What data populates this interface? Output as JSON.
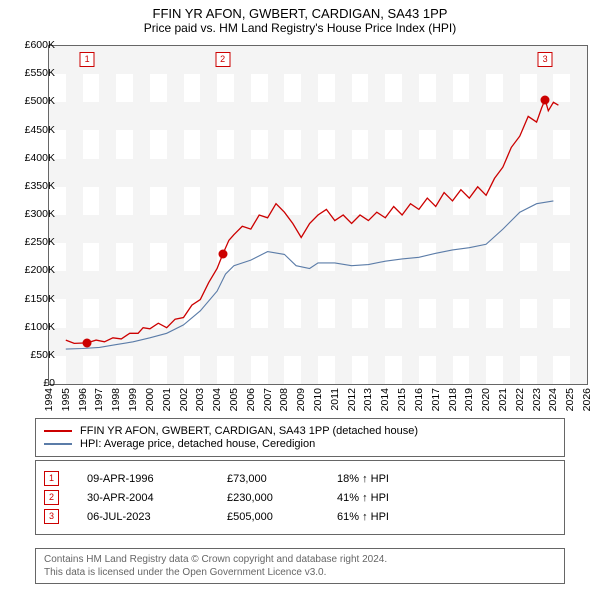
{
  "title": "FFIN YR AFON, GWBERT, CARDIGAN, SA43 1PP",
  "subtitle": "Price paid vs. HM Land Registry's House Price Index (HPI)",
  "chart": {
    "type": "line",
    "ylim": [
      0,
      600000
    ],
    "ytick_step": 50000,
    "ylabels": [
      "£0",
      "£50K",
      "£100K",
      "£150K",
      "£200K",
      "£250K",
      "£300K",
      "£350K",
      "£400K",
      "£450K",
      "£500K",
      "£550K",
      "£600K"
    ],
    "xlim": [
      1994,
      2026
    ],
    "xtick_step": 1,
    "xlabels": [
      "1994",
      "1995",
      "1996",
      "1997",
      "1998",
      "1999",
      "2000",
      "2001",
      "2002",
      "2003",
      "2004",
      "2005",
      "2006",
      "2007",
      "2008",
      "2009",
      "2010",
      "2011",
      "2012",
      "2013",
      "2014",
      "2015",
      "2016",
      "2017",
      "2018",
      "2019",
      "2020",
      "2021",
      "2022",
      "2023",
      "2024",
      "2025",
      "2026"
    ],
    "background_color": "#ffffff",
    "band_color": "#f4f4f4",
    "series": [
      {
        "name": "price_paid",
        "label": "FFIN YR AFON, GWBERT, CARDIGAN, SA43 1PP (detached house)",
        "color": "#cc0000",
        "line_width": 1.3,
        "data": [
          [
            1995.0,
            78000
          ],
          [
            1995.5,
            72000
          ],
          [
            1996.27,
            73000
          ],
          [
            1996.8,
            78000
          ],
          [
            1997.3,
            75000
          ],
          [
            1997.8,
            82000
          ],
          [
            1998.3,
            80000
          ],
          [
            1998.8,
            90000
          ],
          [
            1999.3,
            90000
          ],
          [
            1999.6,
            100000
          ],
          [
            2000.0,
            98000
          ],
          [
            2000.5,
            108000
          ],
          [
            2001.0,
            100000
          ],
          [
            2001.5,
            115000
          ],
          [
            2002.0,
            118000
          ],
          [
            2002.5,
            140000
          ],
          [
            2003.0,
            150000
          ],
          [
            2003.5,
            180000
          ],
          [
            2004.0,
            205000
          ],
          [
            2004.33,
            230000
          ],
          [
            2004.7,
            255000
          ],
          [
            2005.0,
            265000
          ],
          [
            2005.5,
            280000
          ],
          [
            2006.0,
            275000
          ],
          [
            2006.5,
            300000
          ],
          [
            2007.0,
            295000
          ],
          [
            2007.5,
            320000
          ],
          [
            2008.0,
            305000
          ],
          [
            2008.5,
            285000
          ],
          [
            2009.0,
            260000
          ],
          [
            2009.5,
            285000
          ],
          [
            2010.0,
            300000
          ],
          [
            2010.5,
            310000
          ],
          [
            2011.0,
            290000
          ],
          [
            2011.5,
            300000
          ],
          [
            2012.0,
            285000
          ],
          [
            2012.5,
            300000
          ],
          [
            2013.0,
            290000
          ],
          [
            2013.5,
            305000
          ],
          [
            2014.0,
            295000
          ],
          [
            2014.5,
            315000
          ],
          [
            2015.0,
            300000
          ],
          [
            2015.5,
            320000
          ],
          [
            2016.0,
            310000
          ],
          [
            2016.5,
            330000
          ],
          [
            2017.0,
            315000
          ],
          [
            2017.5,
            340000
          ],
          [
            2018.0,
            325000
          ],
          [
            2018.5,
            345000
          ],
          [
            2019.0,
            330000
          ],
          [
            2019.5,
            350000
          ],
          [
            2020.0,
            335000
          ],
          [
            2020.5,
            365000
          ],
          [
            2021.0,
            385000
          ],
          [
            2021.5,
            420000
          ],
          [
            2022.0,
            440000
          ],
          [
            2022.5,
            475000
          ],
          [
            2023.0,
            465000
          ],
          [
            2023.3,
            490000
          ],
          [
            2023.51,
            505000
          ],
          [
            2023.7,
            485000
          ],
          [
            2024.0,
            500000
          ],
          [
            2024.3,
            495000
          ]
        ]
      },
      {
        "name": "hpi",
        "label": "HPI: Average price, detached house, Ceredigion",
        "color": "#5b7ca8",
        "line_width": 1.1,
        "data": [
          [
            1995.0,
            62000
          ],
          [
            1996.0,
            63000
          ],
          [
            1997.0,
            65000
          ],
          [
            1998.0,
            70000
          ],
          [
            1999.0,
            75000
          ],
          [
            2000.0,
            82000
          ],
          [
            2001.0,
            90000
          ],
          [
            2002.0,
            105000
          ],
          [
            2003.0,
            130000
          ],
          [
            2004.0,
            165000
          ],
          [
            2004.5,
            195000
          ],
          [
            2005.0,
            210000
          ],
          [
            2006.0,
            220000
          ],
          [
            2007.0,
            235000
          ],
          [
            2008.0,
            230000
          ],
          [
            2008.7,
            210000
          ],
          [
            2009.5,
            205000
          ],
          [
            2010.0,
            215000
          ],
          [
            2011.0,
            215000
          ],
          [
            2012.0,
            210000
          ],
          [
            2013.0,
            212000
          ],
          [
            2014.0,
            218000
          ],
          [
            2015.0,
            222000
          ],
          [
            2016.0,
            225000
          ],
          [
            2017.0,
            232000
          ],
          [
            2018.0,
            238000
          ],
          [
            2019.0,
            242000
          ],
          [
            2020.0,
            248000
          ],
          [
            2021.0,
            275000
          ],
          [
            2022.0,
            305000
          ],
          [
            2023.0,
            320000
          ],
          [
            2024.0,
            325000
          ]
        ]
      }
    ],
    "markers": [
      {
        "n": "1",
        "x": 1996.27,
        "y": 73000
      },
      {
        "n": "2",
        "x": 2004.33,
        "y": 230000
      },
      {
        "n": "3",
        "x": 2023.51,
        "y": 505000
      }
    ]
  },
  "legend": {
    "items": [
      {
        "color": "#cc0000",
        "label": "FFIN YR AFON, GWBERT, CARDIGAN, SA43 1PP (detached house)"
      },
      {
        "color": "#5b7ca8",
        "label": "HPI: Average price, detached house, Ceredigion"
      }
    ]
  },
  "events": [
    {
      "n": "1",
      "date": "09-APR-1996",
      "price": "£73,000",
      "pct": "18% ↑ HPI"
    },
    {
      "n": "2",
      "date": "30-APR-2004",
      "price": "£230,000",
      "pct": "41% ↑ HPI"
    },
    {
      "n": "3",
      "date": "06-JUL-2023",
      "price": "£505,000",
      "pct": "61% ↑ HPI"
    }
  ],
  "footer": {
    "line1": "Contains HM Land Registry data © Crown copyright and database right 2024.",
    "line2": "This data is licensed under the Open Government Licence v3.0."
  }
}
